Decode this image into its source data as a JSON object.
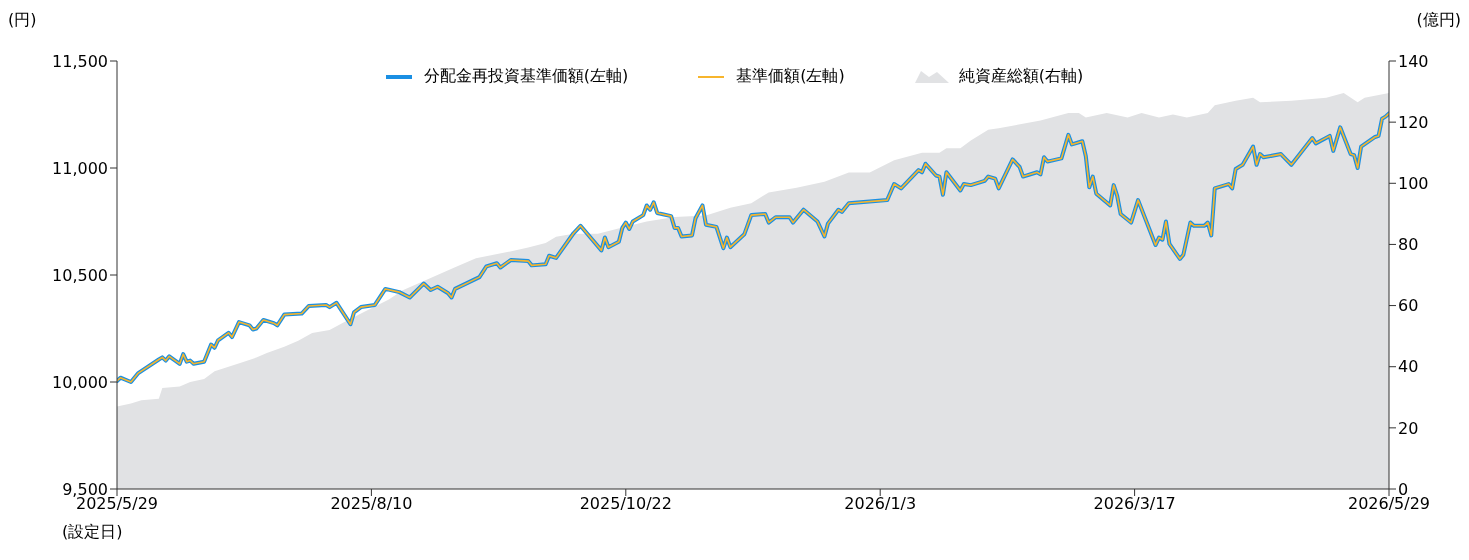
{
  "chart_data": {
    "type": "line",
    "ylabel": "(円)",
    "y2label": "(億円)",
    "legend": "top",
    "annotations": [
      "(設定日)"
    ],
    "xlim": [
      "2025-05-29",
      "2026-05-29"
    ],
    "xticks": [
      {
        "value": "2025-05-29",
        "label": "2025/5/29"
      },
      {
        "value": "2025-08-10",
        "label": "2025/8/10"
      },
      {
        "value": "2025-10-22",
        "label": "2025/10/22"
      },
      {
        "value": "2026-01-03",
        "label": "2026/1/3"
      },
      {
        "value": "2026-03-17",
        "label": "2026/3/17"
      },
      {
        "value": "2026-05-29",
        "label": "2026/5/29"
      }
    ],
    "ylim": [
      9500,
      11500
    ],
    "yticks": [
      {
        "value": 9500,
        "label": "9,500"
      },
      {
        "value": 10000,
        "label": "10,000"
      },
      {
        "value": 10500,
        "label": "10,500"
      },
      {
        "value": 11000,
        "label": "11,000"
      },
      {
        "value": 11500,
        "label": "11,500"
      }
    ],
    "y2lim": [
      0,
      140
    ],
    "y2ticks": [
      0,
      20,
      40,
      60,
      80,
      100,
      120,
      140
    ],
    "x": [
      "2025-05-29",
      "2025-05-30",
      "2025-06-02",
      "2025-06-04",
      "2025-06-10",
      "2025-06-11",
      "2025-06-12",
      "2025-06-13",
      "2025-06-16",
      "2025-06-17",
      "2025-06-18",
      "2025-06-19",
      "2025-06-20",
      "2025-06-23",
      "2025-06-25",
      "2025-06-26",
      "2025-06-27",
      "2025-06-30",
      "2025-07-01",
      "2025-07-03",
      "2025-07-06",
      "2025-07-07",
      "2025-07-08",
      "2025-07-10",
      "2025-07-13",
      "2025-07-14",
      "2025-07-16",
      "2025-07-21",
      "2025-07-23",
      "2025-07-28",
      "2025-07-29",
      "2025-07-31",
      "2025-08-04",
      "2025-08-05",
      "2025-08-07",
      "2025-08-11",
      "2025-08-14",
      "2025-08-18",
      "2025-08-21",
      "2025-08-25",
      "2025-08-27",
      "2025-08-29",
      "2025-09-01",
      "2025-09-02",
      "2025-09-03",
      "2025-09-10",
      "2025-09-12",
      "2025-09-15",
      "2025-09-16",
      "2025-09-19",
      "2025-09-24",
      "2025-09-25",
      "2025-09-29",
      "2025-09-30",
      "2025-10-02",
      "2025-10-07",
      "2025-10-09",
      "2025-10-15",
      "2025-10-16",
      "2025-10-17",
      "2025-10-20",
      "2025-10-21",
      "2025-10-22",
      "2025-10-23",
      "2025-10-24",
      "2025-10-27",
      "2025-10-28",
      "2025-10-29",
      "2025-10-30",
      "2025-10-31",
      "2025-11-04",
      "2025-11-05",
      "2025-11-06",
      "2025-11-07",
      "2025-11-10",
      "2025-11-11",
      "2025-11-13",
      "2025-11-14",
      "2025-11-17",
      "2025-11-19",
      "2025-11-20",
      "2025-11-21",
      "2025-11-25",
      "2025-11-27",
      "2025-12-01",
      "2025-12-02",
      "2025-12-04",
      "2025-12-08",
      "2025-12-09",
      "2025-12-12",
      "2025-12-16",
      "2025-12-18",
      "2025-12-19",
      "2025-12-22",
      "2025-12-23",
      "2025-12-25",
      "2026-01-05",
      "2026-01-07",
      "2026-01-09",
      "2026-01-14",
      "2026-01-15",
      "2026-01-16",
      "2026-01-19",
      "2026-01-20",
      "2026-01-21",
      "2026-01-22",
      "2026-01-26",
      "2026-01-27",
      "2026-01-29",
      "2026-02-02",
      "2026-02-03",
      "2026-02-05",
      "2026-02-06",
      "2026-02-10",
      "2026-02-12",
      "2026-02-13",
      "2026-02-17",
      "2026-02-18",
      "2026-02-19",
      "2026-02-20",
      "2026-02-24",
      "2026-02-26",
      "2026-02-27",
      "2026-03-02",
      "2026-03-03",
      "2026-03-04",
      "2026-03-05",
      "2026-03-06",
      "2026-03-10",
      "2026-03-11",
      "2026-03-12",
      "2026-03-13",
      "2026-03-16",
      "2026-03-18",
      "2026-03-23",
      "2026-03-24",
      "2026-03-25",
      "2026-03-26",
      "2026-03-27",
      "2026-03-30",
      "2026-03-31",
      "2026-04-02",
      "2026-04-03",
      "2026-04-06",
      "2026-04-07",
      "2026-04-08",
      "2026-04-09",
      "2026-04-13",
      "2026-04-14",
      "2026-04-15",
      "2026-04-17",
      "2026-04-20",
      "2026-04-21",
      "2026-04-22",
      "2026-04-23",
      "2026-04-28",
      "2026-05-01",
      "2026-05-07",
      "2026-05-08",
      "2026-05-12",
      "2026-05-13",
      "2026-05-15",
      "2026-05-18",
      "2026-05-19",
      "2026-05-20",
      "2026-05-21",
      "2026-05-25",
      "2026-05-26",
      "2026-05-27",
      "2026-05-28",
      "2026-05-29"
    ],
    "series": [
      {
        "name": "分配金再投資基準価額(左軸)",
        "color": "#1a8fe3",
        "values": [
          10005,
          10020,
          10000,
          10040,
          10105,
          10115,
          10100,
          10120,
          10085,
          10130,
          10095,
          10100,
          10085,
          10095,
          10175,
          10160,
          10195,
          10230,
          10210,
          10280,
          10265,
          10245,
          10250,
          10290,
          10275,
          10265,
          10315,
          10320,
          10355,
          10360,
          10350,
          10370,
          10270,
          10325,
          10350,
          10360,
          10435,
          10420,
          10395,
          10460,
          10430,
          10445,
          10415,
          10395,
          10435,
          10490,
          10540,
          10555,
          10535,
          10570,
          10565,
          10545,
          10550,
          10590,
          10580,
          10695,
          10730,
          10615,
          10675,
          10630,
          10655,
          10720,
          10745,
          10715,
          10750,
          10780,
          10825,
          10805,
          10840,
          10790,
          10775,
          10720,
          10720,
          10680,
          10685,
          10765,
          10825,
          10735,
          10725,
          10625,
          10675,
          10630,
          10690,
          10780,
          10785,
          10745,
          10770,
          10770,
          10745,
          10805,
          10750,
          10680,
          10740,
          10805,
          10795,
          10835,
          10850,
          10925,
          10905,
          10990,
          10980,
          11020,
          10965,
          10960,
          10875,
          10980,
          10895,
          10925,
          10920,
          10940,
          10960,
          10950,
          10905,
          11040,
          11005,
          10960,
          10980,
          10970,
          11050,
          11030,
          11045,
          11155,
          11110,
          11125,
          11055,
          10910,
          10960,
          10880,
          10825,
          10920,
          10870,
          10785,
          10745,
          10850,
          10640,
          10675,
          10665,
          10750,
          10645,
          10575,
          10595,
          10745,
          10730,
          10730,
          10745,
          10685,
          10905,
          10925,
          10905,
          10995,
          11015,
          11100,
          11015,
          11065,
          11050,
          11065,
          11015,
          11140,
          11115,
          11150,
          11080,
          11190,
          11065,
          11060,
          11000,
          11100,
          11145,
          11150,
          11230,
          11240,
          11255
        ]
      },
      {
        "name": "基準価額(左軸)",
        "color": "#f7b52c",
        "values": [
          10005,
          10020,
          10000,
          10040,
          10105,
          10115,
          10100,
          10120,
          10085,
          10130,
          10095,
          10100,
          10085,
          10095,
          10175,
          10160,
          10195,
          10230,
          10210,
          10280,
          10265,
          10245,
          10250,
          10290,
          10275,
          10265,
          10315,
          10320,
          10355,
          10360,
          10350,
          10370,
          10270,
          10325,
          10350,
          10360,
          10435,
          10420,
          10395,
          10460,
          10430,
          10445,
          10415,
          10395,
          10435,
          10490,
          10540,
          10555,
          10535,
          10570,
          10565,
          10545,
          10550,
          10590,
          10580,
          10695,
          10730,
          10615,
          10675,
          10630,
          10655,
          10720,
          10745,
          10715,
          10750,
          10780,
          10825,
          10805,
          10840,
          10790,
          10775,
          10720,
          10720,
          10680,
          10685,
          10765,
          10825,
          10735,
          10725,
          10625,
          10675,
          10630,
          10690,
          10780,
          10785,
          10745,
          10770,
          10770,
          10745,
          10805,
          10750,
          10680,
          10740,
          10805,
          10795,
          10835,
          10850,
          10925,
          10905,
          10990,
          10980,
          11020,
          10965,
          10960,
          10875,
          10980,
          10895,
          10925,
          10920,
          10940,
          10960,
          10950,
          10905,
          11040,
          11005,
          10960,
          10980,
          10970,
          11050,
          11030,
          11045,
          11155,
          11110,
          11125,
          11055,
          10910,
          10960,
          10880,
          10825,
          10920,
          10870,
          10785,
          10745,
          10850,
          10640,
          10675,
          10665,
          10750,
          10645,
          10575,
          10595,
          10745,
          10730,
          10730,
          10745,
          10685,
          10905,
          10925,
          10905,
          10995,
          11015,
          11100,
          11015,
          11065,
          11050,
          11065,
          11015,
          11140,
          11115,
          11150,
          11080,
          11190,
          11065,
          11060,
          11000,
          11100,
          11145,
          11150,
          11230,
          11240,
          11255
        ]
      },
      {
        "name": "純資産総額(右軸)",
        "type": "area",
        "axis": "y2",
        "color": "#e1e2e4",
        "x": [
          "2025-05-29",
          "2025-06-02",
          "2025-06-05",
          "2025-06-10",
          "2025-06-11",
          "2025-06-16",
          "2025-06-19",
          "2025-06-23",
          "2025-06-26",
          "2025-06-30",
          "2025-07-04",
          "2025-07-08",
          "2025-07-11",
          "2025-07-16",
          "2025-07-20",
          "2025-07-24",
          "2025-07-29",
          "2025-08-02",
          "2025-08-08",
          "2025-08-15",
          "2025-08-19",
          "2025-08-27",
          "2025-09-03",
          "2025-09-09",
          "2025-09-18",
          "2025-09-24",
          "2025-09-29",
          "2025-10-02",
          "2025-10-07",
          "2025-10-14",
          "2025-10-21",
          "2025-10-28",
          "2025-11-05",
          "2025-11-14",
          "2025-11-21",
          "2025-11-27",
          "2025-12-02",
          "2025-12-10",
          "2025-12-18",
          "2025-12-25",
          "2025-12-31",
          "2026-01-07",
          "2026-01-15",
          "2026-01-20",
          "2026-01-22",
          "2026-01-26",
          "2026-01-29",
          "2026-02-03",
          "2026-02-06",
          "2026-02-18",
          "2026-02-26",
          "2026-03-01",
          "2026-03-03",
          "2026-03-09",
          "2026-03-15",
          "2026-03-19",
          "2026-03-24",
          "2026-03-28",
          "2026-04-01",
          "2026-04-07",
          "2026-04-09",
          "2026-04-15",
          "2026-04-20",
          "2026-04-22",
          "2026-05-01",
          "2026-05-11",
          "2026-05-16",
          "2026-05-20",
          "2026-05-22",
          "2026-05-29"
        ],
        "values": [
          27,
          28,
          29,
          29.5,
          33,
          33.5,
          35,
          36,
          38.5,
          40,
          41.5,
          43,
          44.5,
          46.5,
          48.5,
          51,
          52,
          54.5,
          58,
          62,
          65,
          69,
          72.5,
          75.5,
          77.5,
          79,
          80.5,
          82.5,
          83.5,
          83.5,
          85.5,
          87.5,
          89,
          89.5,
          92,
          93.5,
          97,
          98.5,
          100.5,
          103.5,
          103.5,
          107.5,
          110,
          110,
          111.5,
          111.5,
          114,
          117.5,
          118,
          120.5,
          123,
          123,
          121.5,
          123,
          121.5,
          123,
          121.5,
          122.5,
          121.5,
          123,
          125.5,
          127,
          128,
          126.5,
          127,
          128,
          129.5,
          126.5,
          128,
          129.5
        ]
      }
    ]
  }
}
